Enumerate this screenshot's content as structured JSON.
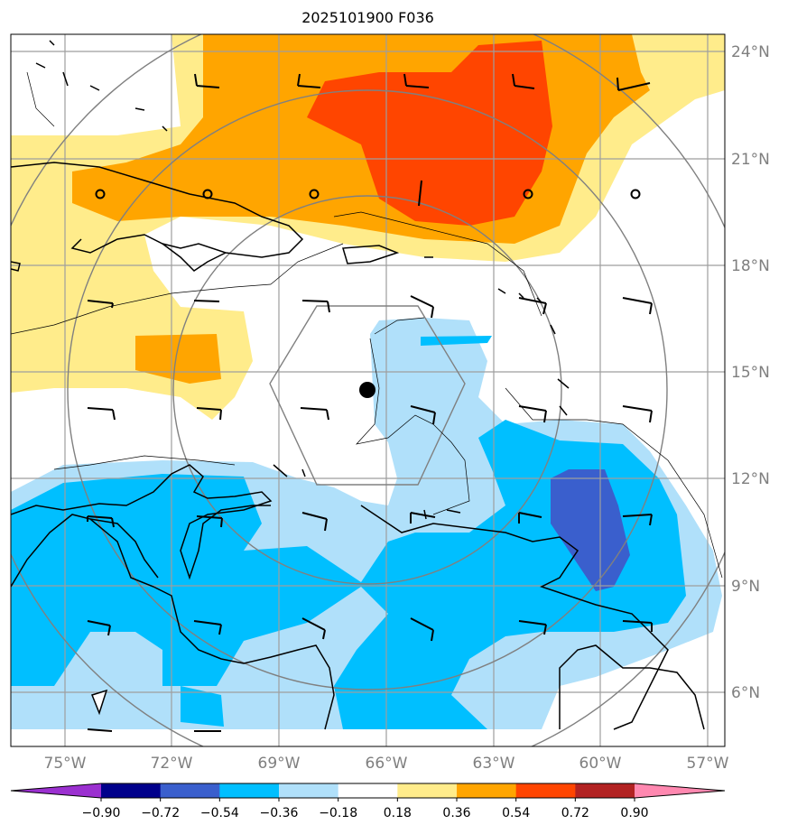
{
  "title": "2025101900 F036",
  "map": {
    "lat_labels": [
      "24°N",
      "21°N",
      "18°N",
      "15°N",
      "12°N",
      "9°N",
      "6°N"
    ],
    "lon_labels": [
      "75°W",
      "72°W",
      "69°W",
      "66°W",
      "63°W",
      "60°W",
      "57°W"
    ],
    "center_marker": {
      "lat": 14.5,
      "lon": -66.5
    }
  },
  "colorbar": {
    "labels": [
      "−0.90",
      "−0.72",
      "−0.54",
      "−0.36",
      "−0.18",
      "0.18",
      "0.36",
      "0.54",
      "0.72",
      "0.90"
    ],
    "colors": [
      "#9b30d0",
      "#00008b",
      "#3a5fcd",
      "#00bfff",
      "#b0e0fa",
      "#ffffff",
      "#ffec8b",
      "#ffa500",
      "#ff4500",
      "#b22222",
      "#ff88b0"
    ]
  }
}
